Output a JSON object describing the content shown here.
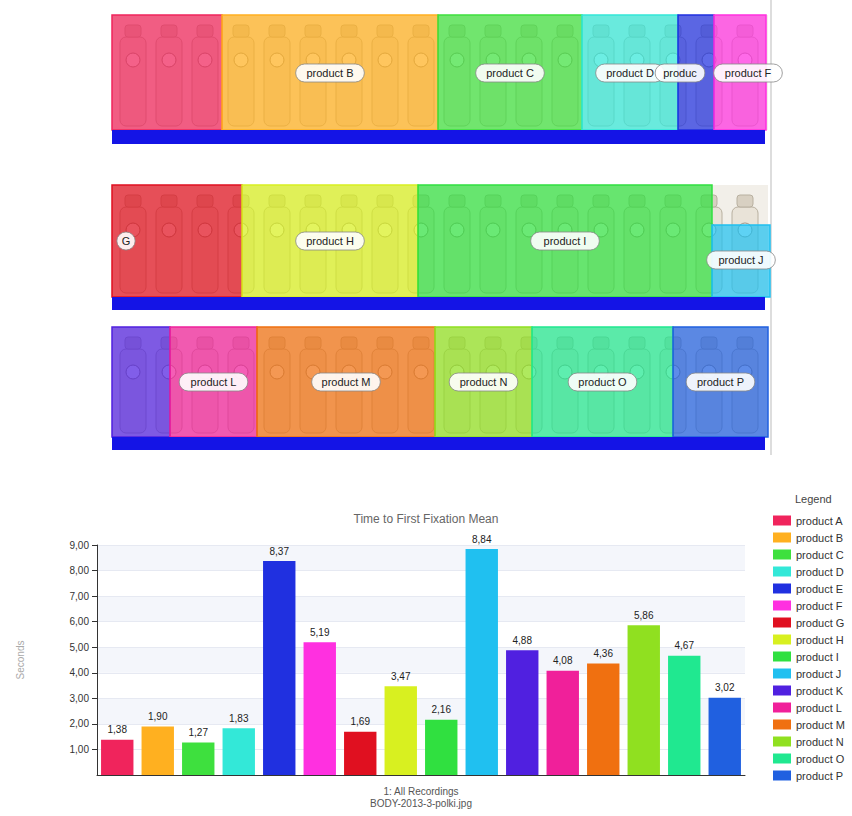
{
  "shelf": {
    "rows": [
      [
        {
          "label": null,
          "color": "#f0245c"
        },
        {
          "label": "product B",
          "color": "#ffb020"
        },
        {
          "label": "product C",
          "color": "#3ee03e"
        },
        {
          "label": "product D",
          "color": "#33e8d8"
        },
        {
          "label": "produc",
          "color": "#2030e0"
        },
        {
          "label": "product F",
          "color": "#ff30e0"
        }
      ],
      [
        {
          "label": "G",
          "color": "#e01020"
        },
        {
          "label": "product H",
          "color": "#d8f020"
        },
        {
          "label": "product I",
          "color": "#30e040"
        },
        {
          "label": "product J",
          "color": "#20c0f0"
        }
      ],
      [
        {
          "label": null,
          "color": "#5020e0"
        },
        {
          "label": "product L",
          "color": "#f0209a"
        },
        {
          "label": "product M",
          "color": "#f07010"
        },
        {
          "label": "product N",
          "color": "#90e020"
        },
        {
          "label": "product O",
          "color": "#20e890"
        },
        {
          "label": "product P",
          "color": "#2060e0"
        }
      ]
    ]
  },
  "chart_data": {
    "type": "bar",
    "title": "Time to First Fixation Mean",
    "ylabel": "Seconds",
    "xlabel": [
      "1: All Recordings",
      "BODY-2013-3-polki.jpg"
    ],
    "legend_title": "Legend",
    "categories": [
      "product A",
      "product B",
      "product C",
      "product D",
      "product E",
      "product F",
      "product G",
      "product H",
      "product I",
      "product J",
      "product K",
      "product L",
      "product M",
      "product N",
      "product O",
      "product P"
    ],
    "values": [
      1.38,
      1.9,
      1.27,
      1.83,
      8.37,
      5.19,
      1.69,
      3.47,
      2.16,
      8.84,
      4.88,
      4.08,
      4.36,
      5.86,
      4.67,
      3.02
    ],
    "value_labels": [
      "1,38",
      "1,90",
      "1,27",
      "1,83",
      "8,37",
      "5,19",
      "1,69",
      "3,47",
      "2,16",
      "8,84",
      "4,88",
      "4,08",
      "4,36",
      "5,86",
      "4,67",
      "3,02"
    ],
    "colors": [
      "#f0245c",
      "#ffb020",
      "#3ee03e",
      "#33e8d8",
      "#2030e0",
      "#ff30e0",
      "#e01020",
      "#d8f020",
      "#30e040",
      "#20c0f0",
      "#5020e0",
      "#f0209a",
      "#f07010",
      "#90e020",
      "#20e890",
      "#2060e0"
    ],
    "ylim": [
      0,
      9
    ],
    "yticks": [
      {
        "value": 1,
        "label": "1,00"
      },
      {
        "value": 2,
        "label": "2,00"
      },
      {
        "value": 3,
        "label": "3,00"
      },
      {
        "value": 4,
        "label": "4,00"
      },
      {
        "value": 5,
        "label": "5,00"
      },
      {
        "value": 6,
        "label": "6,00"
      },
      {
        "value": 7,
        "label": "7,00"
      },
      {
        "value": 8,
        "label": "8,00"
      },
      {
        "value": 9,
        "label": "9,00"
      }
    ],
    "grid": true,
    "data_labels": true,
    "legend": "right",
    "tick_labels": "y"
  }
}
